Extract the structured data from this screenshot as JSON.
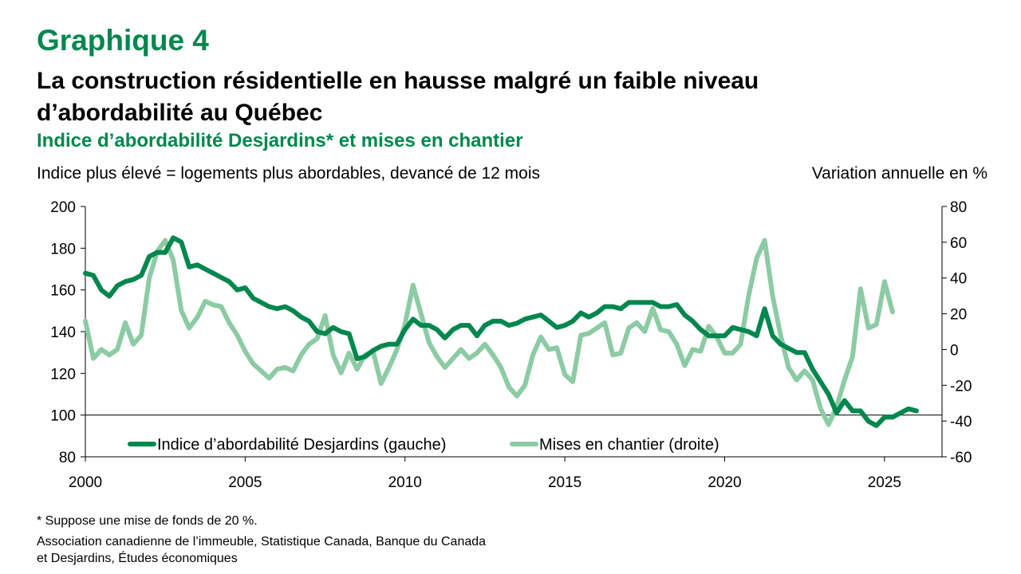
{
  "header": {
    "graph_label": "Graphique 4",
    "title_line1": "La construction résidentielle en hausse malgré un faible niveau",
    "title_line2": "d’abordabilité au Québec",
    "subtitle": "Indice d’abordabilité Desjardins* et mises en chantier"
  },
  "footnote": {
    "note": "* Suppose une mise de fonds de 20 %.",
    "source_line1": "Association canadienne de l’immeuble, Statistique Canada, Banque du Canada",
    "source_line2": "et Desjardins, Études économiques"
  },
  "colors": {
    "accent": "#00874E",
    "series1": "#00874E",
    "series2": "#8CCBA4"
  },
  "chart_data": {
    "type": "line",
    "ylabel_left": "Indice plus élevé = logements plus abordables, devancé de 12 mois",
    "ylabel_right": "Variation annuelle en %",
    "xlim": [
      2000,
      2026.8
    ],
    "ylim_left": [
      80,
      200
    ],
    "ylim_right": [
      -60,
      80
    ],
    "x_ticks": [
      "2000",
      "2005",
      "2010",
      "2015",
      "2020",
      "2025"
    ],
    "y_ticks_left": [
      "80",
      "100",
      "120",
      "140",
      "160",
      "180",
      "200"
    ],
    "y_ticks_right": [
      "-60",
      "-40",
      "-20",
      "0",
      "20",
      "40",
      "60",
      "80"
    ],
    "reference_line_left": 100,
    "legend_position": "bottom",
    "series": [
      {
        "name": "Indice d’abordabilité Desjardins (gauche)",
        "axis": "left",
        "points": [
          [
            2000.0,
            168
          ],
          [
            2000.25,
            167
          ],
          [
            2000.5,
            160
          ],
          [
            2000.75,
            157
          ],
          [
            2001.0,
            162
          ],
          [
            2001.25,
            164
          ],
          [
            2001.5,
            165
          ],
          [
            2001.75,
            167
          ],
          [
            2002.0,
            176
          ],
          [
            2002.25,
            178
          ],
          [
            2002.5,
            178
          ],
          [
            2002.75,
            185
          ],
          [
            2003.0,
            183
          ],
          [
            2003.25,
            171
          ],
          [
            2003.5,
            172
          ],
          [
            2003.75,
            170
          ],
          [
            2004.0,
            168
          ],
          [
            2004.25,
            166
          ],
          [
            2004.5,
            164
          ],
          [
            2004.75,
            160
          ],
          [
            2005.0,
            161
          ],
          [
            2005.25,
            156
          ],
          [
            2005.5,
            154
          ],
          [
            2005.75,
            152
          ],
          [
            2006.0,
            151
          ],
          [
            2006.25,
            152
          ],
          [
            2006.5,
            150
          ],
          [
            2006.75,
            147
          ],
          [
            2007.0,
            145
          ],
          [
            2007.25,
            140
          ],
          [
            2007.5,
            139
          ],
          [
            2007.75,
            142
          ],
          [
            2008.0,
            140
          ],
          [
            2008.25,
            139
          ],
          [
            2008.5,
            127
          ],
          [
            2008.75,
            128
          ],
          [
            2009.0,
            131
          ],
          [
            2009.25,
            133
          ],
          [
            2009.5,
            134
          ],
          [
            2009.75,
            134
          ],
          [
            2010.0,
            141
          ],
          [
            2010.25,
            146
          ],
          [
            2010.5,
            143
          ],
          [
            2010.75,
            143
          ],
          [
            2011.0,
            141
          ],
          [
            2011.25,
            137
          ],
          [
            2011.5,
            141
          ],
          [
            2011.75,
            143
          ],
          [
            2012.0,
            143
          ],
          [
            2012.25,
            138
          ],
          [
            2012.5,
            143
          ],
          [
            2012.75,
            145
          ],
          [
            2013.0,
            145
          ],
          [
            2013.25,
            143
          ],
          [
            2013.5,
            144
          ],
          [
            2013.75,
            146
          ],
          [
            2014.0,
            147
          ],
          [
            2014.25,
            148
          ],
          [
            2014.5,
            145
          ],
          [
            2014.75,
            142
          ],
          [
            2015.0,
            143
          ],
          [
            2015.25,
            145
          ],
          [
            2015.5,
            149
          ],
          [
            2015.75,
            147
          ],
          [
            2016.0,
            149
          ],
          [
            2016.25,
            152
          ],
          [
            2016.5,
            152
          ],
          [
            2016.75,
            151
          ],
          [
            2017.0,
            154
          ],
          [
            2017.25,
            154
          ],
          [
            2017.5,
            154
          ],
          [
            2017.75,
            154
          ],
          [
            2018.0,
            152
          ],
          [
            2018.25,
            152
          ],
          [
            2018.5,
            153
          ],
          [
            2018.75,
            148
          ],
          [
            2019.0,
            145
          ],
          [
            2019.25,
            141
          ],
          [
            2019.5,
            138
          ],
          [
            2019.75,
            138
          ],
          [
            2020.0,
            138
          ],
          [
            2020.25,
            142
          ],
          [
            2020.5,
            141
          ],
          [
            2020.75,
            140
          ],
          [
            2021.0,
            138
          ],
          [
            2021.25,
            151
          ],
          [
            2021.5,
            138
          ],
          [
            2021.75,
            134
          ],
          [
            2022.0,
            132
          ],
          [
            2022.25,
            130
          ],
          [
            2022.5,
            130
          ],
          [
            2022.75,
            122
          ],
          [
            2023.0,
            116
          ],
          [
            2023.25,
            110
          ],
          [
            2023.5,
            101
          ],
          [
            2023.75,
            107
          ],
          [
            2024.0,
            102
          ],
          [
            2024.25,
            102
          ],
          [
            2024.5,
            97
          ],
          [
            2024.75,
            95
          ],
          [
            2025.0,
            99
          ],
          [
            2025.25,
            99
          ],
          [
            2025.5,
            101
          ],
          [
            2025.75,
            103
          ],
          [
            2026.0,
            102
          ]
        ]
      },
      {
        "name": "Mises en chantier (droite)",
        "axis": "right",
        "points": [
          [
            2000.0,
            16
          ],
          [
            2000.25,
            -5
          ],
          [
            2000.5,
            0
          ],
          [
            2000.75,
            -3
          ],
          [
            2001.0,
            0
          ],
          [
            2001.25,
            15
          ],
          [
            2001.5,
            3
          ],
          [
            2001.75,
            8
          ],
          [
            2002.0,
            40
          ],
          [
            2002.25,
            55
          ],
          [
            2002.5,
            61
          ],
          [
            2002.75,
            50
          ],
          [
            2003.0,
            22
          ],
          [
            2003.25,
            12
          ],
          [
            2003.5,
            18
          ],
          [
            2003.75,
            27
          ],
          [
            2004.0,
            25
          ],
          [
            2004.25,
            24
          ],
          [
            2004.5,
            15
          ],
          [
            2004.75,
            8
          ],
          [
            2005.0,
            -1
          ],
          [
            2005.25,
            -8
          ],
          [
            2005.5,
            -12
          ],
          [
            2005.75,
            -16
          ],
          [
            2006.0,
            -11
          ],
          [
            2006.25,
            -10
          ],
          [
            2006.5,
            -12
          ],
          [
            2006.75,
            -3
          ],
          [
            2007.0,
            3
          ],
          [
            2007.25,
            6
          ],
          [
            2007.5,
            19
          ],
          [
            2007.75,
            -3
          ],
          [
            2008.0,
            -13
          ],
          [
            2008.25,
            -2
          ],
          [
            2008.5,
            -11
          ],
          [
            2008.75,
            -3
          ],
          [
            2009.0,
            -1
          ],
          [
            2009.25,
            -19
          ],
          [
            2009.5,
            -10
          ],
          [
            2009.75,
            0
          ],
          [
            2010.0,
            14
          ],
          [
            2010.25,
            36
          ],
          [
            2010.5,
            20
          ],
          [
            2010.75,
            4
          ],
          [
            2011.0,
            -4
          ],
          [
            2011.25,
            -10
          ],
          [
            2011.5,
            -5
          ],
          [
            2011.75,
            0
          ],
          [
            2012.0,
            -5
          ],
          [
            2012.25,
            -2
          ],
          [
            2012.5,
            3
          ],
          [
            2012.75,
            -3
          ],
          [
            2013.0,
            -10
          ],
          [
            2013.25,
            -21
          ],
          [
            2013.5,
            -26
          ],
          [
            2013.75,
            -20
          ],
          [
            2014.0,
            -3
          ],
          [
            2014.25,
            7
          ],
          [
            2014.5,
            0
          ],
          [
            2014.75,
            1
          ],
          [
            2015.0,
            -14
          ],
          [
            2015.25,
            -18
          ],
          [
            2015.5,
            8
          ],
          [
            2015.75,
            9
          ],
          [
            2016.0,
            12
          ],
          [
            2016.25,
            15
          ],
          [
            2016.5,
            -3
          ],
          [
            2016.75,
            -2
          ],
          [
            2017.0,
            12
          ],
          [
            2017.25,
            15
          ],
          [
            2017.5,
            10
          ],
          [
            2017.75,
            23
          ],
          [
            2018.0,
            11
          ],
          [
            2018.25,
            10
          ],
          [
            2018.5,
            3
          ],
          [
            2018.75,
            -9
          ],
          [
            2019.0,
            0
          ],
          [
            2019.25,
            -1
          ],
          [
            2019.5,
            13
          ],
          [
            2019.75,
            7
          ],
          [
            2020.0,
            -2
          ],
          [
            2020.25,
            -2
          ],
          [
            2020.5,
            3
          ],
          [
            2020.75,
            30
          ],
          [
            2021.0,
            51
          ],
          [
            2021.25,
            61
          ],
          [
            2021.5,
            30
          ],
          [
            2021.75,
            8
          ],
          [
            2022.0,
            -10
          ],
          [
            2022.25,
            -17
          ],
          [
            2022.5,
            -12
          ],
          [
            2022.75,
            -17
          ],
          [
            2023.0,
            -33
          ],
          [
            2023.25,
            -42
          ],
          [
            2023.5,
            -32
          ],
          [
            2023.75,
            -17
          ],
          [
            2024.0,
            -4
          ],
          [
            2024.25,
            34
          ],
          [
            2024.5,
            12
          ],
          [
            2024.75,
            14
          ],
          [
            2025.0,
            38
          ],
          [
            2025.25,
            21
          ]
        ]
      }
    ]
  }
}
